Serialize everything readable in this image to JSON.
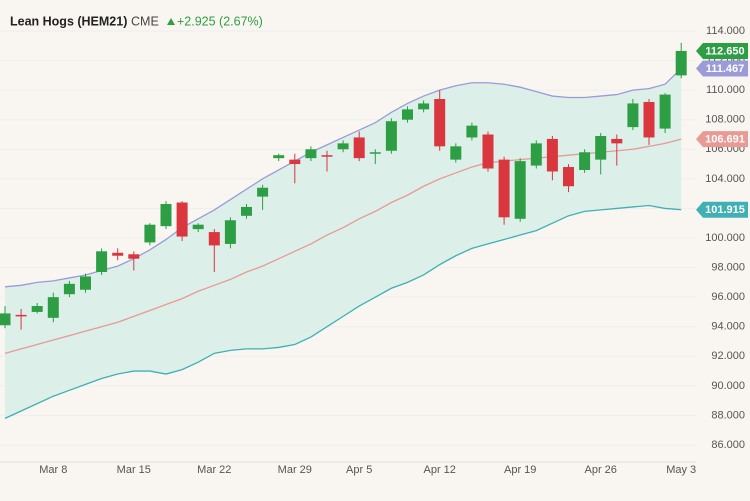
{
  "chart_data": {
    "type": "candlestick",
    "title": "Lean Hogs (HEM21)",
    "exchange": "CME",
    "change": "+2.925 (2.67%)",
    "up_color": "#2e9e45",
    "down_color": "#d9363e",
    "categories": [
      null,
      null,
      null,
      "Mar 8",
      null,
      null,
      null,
      null,
      "Mar 15",
      null,
      null,
      null,
      null,
      "Mar 22",
      null,
      null,
      null,
      null,
      "Mar 29",
      null,
      null,
      null,
      "Apr 5",
      null,
      null,
      null,
      null,
      "Apr 12",
      null,
      null,
      null,
      null,
      "Apr 19",
      null,
      null,
      null,
      null,
      "Apr 26",
      null,
      null,
      null,
      null,
      "May 3"
    ],
    "candles": {
      "open": [
        94.1,
        94.8,
        95.0,
        94.6,
        96.2,
        96.5,
        97.7,
        99.0,
        98.9,
        99.7,
        100.8,
        102.4,
        100.6,
        100.4,
        99.6,
        101.5,
        102.8,
        105.4,
        105.3,
        105.4,
        105.6,
        106.0,
        106.8,
        105.7,
        105.9,
        108.0,
        108.7,
        109.4,
        105.3,
        106.8,
        107.0,
        105.3,
        101.3,
        104.9,
        106.7,
        104.8,
        104.6,
        105.3,
        106.7,
        107.5,
        109.2,
        107.4,
        111.0
      ],
      "high": [
        95.4,
        95.2,
        95.6,
        96.3,
        97.1,
        97.6,
        99.3,
        99.3,
        99.1,
        101.0,
        102.5,
        102.5,
        101.0,
        100.6,
        101.4,
        102.3,
        103.6,
        105.7,
        105.7,
        106.2,
        105.9,
        106.6,
        107.2,
        106.0,
        108.1,
        108.9,
        109.3,
        110.0,
        106.4,
        107.8,
        107.2,
        105.5,
        105.4,
        106.6,
        106.9,
        105.0,
        106.0,
        107.1,
        107.0,
        109.4,
        109.4,
        109.8,
        113.2
      ],
      "low": [
        93.9,
        93.8,
        94.9,
        94.3,
        96.0,
        96.3,
        97.5,
        98.5,
        97.8,
        99.5,
        100.6,
        99.8,
        100.4,
        97.7,
        99.3,
        101.3,
        101.9,
        105.2,
        103.7,
        105.2,
        104.5,
        105.8,
        105.2,
        105.0,
        105.7,
        107.8,
        108.5,
        105.9,
        105.1,
        106.6,
        104.5,
        100.9,
        101.1,
        104.7,
        103.9,
        103.1,
        104.4,
        104.3,
        104.9,
        107.3,
        106.3,
        107.1,
        110.8
      ],
      "close": [
        94.9,
        94.7,
        95.4,
        96.0,
        96.9,
        97.4,
        99.1,
        98.8,
        98.6,
        100.9,
        102.3,
        100.1,
        100.9,
        99.5,
        101.2,
        102.1,
        103.4,
        105.6,
        105.0,
        106.0,
        105.5,
        106.4,
        105.4,
        105.8,
        107.9,
        108.7,
        109.1,
        106.2,
        106.2,
        107.6,
        104.7,
        101.4,
        105.2,
        106.4,
        104.5,
        103.5,
        105.8,
        106.9,
        106.4,
        109.1,
        106.8,
        109.7,
        112.65
      ],
      "last_label": "112.650"
    },
    "series": [
      {
        "name": "Upper",
        "color": "#9b9bd8",
        "last_label": "111.467",
        "values": [
          96.7,
          96.8,
          97.0,
          97.1,
          97.3,
          97.5,
          97.8,
          98.1,
          98.6,
          99.2,
          99.9,
          100.7,
          101.3,
          101.9,
          102.6,
          103.3,
          104.0,
          104.6,
          105.2,
          105.8,
          106.3,
          106.8,
          107.3,
          107.8,
          108.5,
          109.1,
          109.6,
          110.0,
          110.3,
          110.5,
          110.5,
          110.4,
          110.2,
          109.9,
          109.6,
          109.5,
          109.5,
          109.6,
          109.7,
          110.0,
          110.1,
          110.4,
          111.467
        ]
      },
      {
        "name": "Middle",
        "color": "#e89a94",
        "last_label": "106.691",
        "values": [
          92.2,
          92.5,
          92.8,
          93.1,
          93.4,
          93.7,
          94.0,
          94.3,
          94.7,
          95.1,
          95.5,
          95.9,
          96.4,
          96.8,
          97.2,
          97.7,
          98.1,
          98.6,
          99.1,
          99.6,
          100.2,
          100.7,
          101.3,
          101.8,
          102.4,
          102.9,
          103.5,
          104.0,
          104.4,
          104.8,
          105.1,
          105.2,
          105.3,
          105.4,
          105.5,
          105.6,
          105.7,
          105.8,
          105.9,
          106.0,
          106.2,
          106.4,
          106.691
        ]
      },
      {
        "name": "Lower",
        "color": "#3fb0b4",
        "last_label": "101.915",
        "values": [
          87.8,
          88.3,
          88.8,
          89.3,
          89.7,
          90.1,
          90.5,
          90.8,
          91.0,
          91.0,
          90.8,
          91.1,
          91.6,
          92.2,
          92.4,
          92.5,
          92.5,
          92.6,
          92.8,
          93.3,
          94.0,
          94.7,
          95.4,
          96.0,
          96.6,
          97.0,
          97.5,
          98.2,
          98.8,
          99.3,
          99.6,
          99.9,
          100.2,
          100.5,
          101.0,
          101.5,
          101.8,
          101.9,
          102.0,
          102.1,
          102.2,
          102.0,
          101.915
        ]
      }
    ],
    "band_fill": "#dcefe9",
    "ylim": [
      85,
      114.5
    ],
    "yticks": [
      {
        "value": 86,
        "label": "86.000"
      },
      {
        "value": 88,
        "label": "88.000"
      },
      {
        "value": 90,
        "label": "90.000"
      },
      {
        "value": 92,
        "label": "92.000"
      },
      {
        "value": 94,
        "label": "94.000"
      },
      {
        "value": 96,
        "label": "96.000"
      },
      {
        "value": 98,
        "label": "98.000"
      },
      {
        "value": 100,
        "label": "100.000"
      },
      {
        "value": 102,
        "label": "102.000"
      },
      {
        "value": 104,
        "label": "104.000"
      },
      {
        "value": 106,
        "label": "106.000"
      },
      {
        "value": 108,
        "label": "108.000"
      },
      {
        "value": 110,
        "label": "110.000"
      },
      {
        "value": 112,
        "label": "112.000"
      },
      {
        "value": 114,
        "label": "114.000"
      }
    ]
  }
}
